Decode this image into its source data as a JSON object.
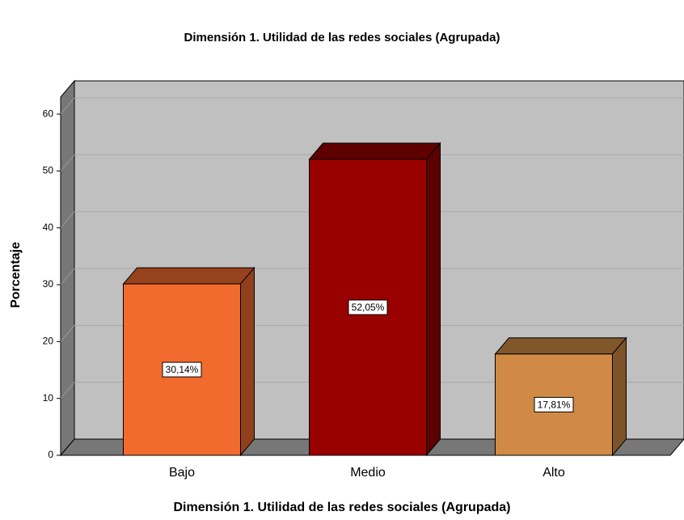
{
  "chart_data": {
    "type": "bar3d",
    "title": "Dimensión 1. Utilidad de las redes sociales (Agrupada)",
    "x_label": "Dimensión 1. Utilidad de las redes sociales (Agrupada)",
    "y_label": "Porcentaje",
    "categories": [
      "Bajo",
      "Medio",
      "Alto"
    ],
    "values": [
      30.14,
      52.05,
      17.81
    ],
    "value_labels": [
      "30,14%",
      "52,05%",
      "17,81%"
    ],
    "colors": [
      "#f26b2e",
      "#990000",
      "#d08a45"
    ],
    "ylim": [
      0,
      63
    ],
    "yticks": [
      0,
      10,
      20,
      30,
      40,
      50,
      60
    ],
    "grid": true
  }
}
